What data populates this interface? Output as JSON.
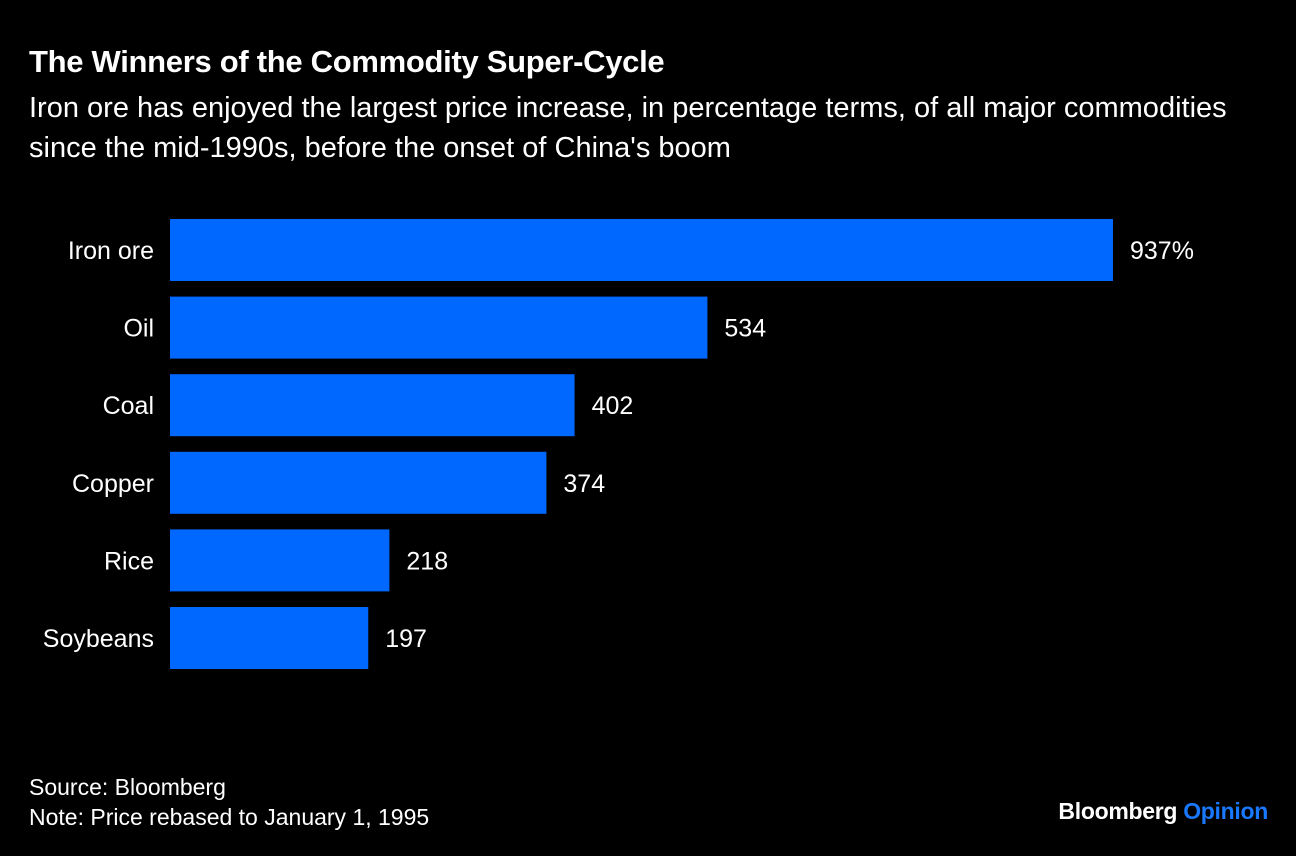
{
  "chart_data": {
    "type": "bar",
    "orientation": "horizontal",
    "title": "The Winners of the Commodity Super-Cycle",
    "subtitle": "Iron ore has enjoyed the largest price increase, in percentage terms, of all major commodities since the mid-1990s, before the onset of China's boom",
    "categories": [
      "Iron ore",
      "Oil",
      "Coal",
      "Copper",
      "Rice",
      "Soybeans"
    ],
    "values": [
      937,
      534,
      402,
      374,
      218,
      197
    ],
    "data_labels": [
      "937%",
      "534",
      "402",
      "374",
      "218",
      "197"
    ],
    "xlim": [
      0,
      937
    ],
    "grid": false,
    "bar_color": "#0068ff"
  },
  "footer": {
    "source": "Source: Bloomberg",
    "note": "Note: Price rebased to January 1, 1995"
  },
  "logo": {
    "brand": "Bloomberg",
    "section": "Opinion",
    "section_color": "#1a78ff"
  },
  "background": "#000000"
}
